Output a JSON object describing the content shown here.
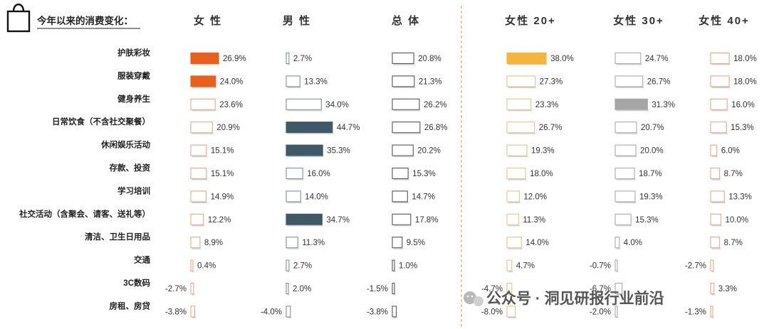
{
  "chart_data": {
    "type": "bar",
    "title": "今年以来的消费变化：",
    "categories": [
      "护肤彩妆",
      "服装穿戴",
      "健身养生",
      "日常饮食（不含社交聚餐）",
      "休闲娱乐活动",
      "存款、投资",
      "学习培训",
      "社交活动（含聚会、请客、送礼等）",
      "清洁、卫生日用品",
      "交通",
      "3C数码",
      "房租、房贷"
    ],
    "series": [
      {
        "name": "女 性",
        "values": [
          26.9,
          24.0,
          23.6,
          20.9,
          15.1,
          15.1,
          14.9,
          12.2,
          8.9,
          0.4,
          -2.7,
          -3.8
        ],
        "labels": [
          "26.9%",
          "24.0%",
          "23.6%",
          "20.9%",
          "15.1%",
          "15.1%",
          "14.9%",
          "12.2%",
          "8.9%",
          "0.4%",
          "-2.7%",
          "-3.8%"
        ],
        "highlight": [
          0,
          1
        ],
        "color": "#e8601c",
        "border": "#e8a888"
      },
      {
        "name": "男 性",
        "values": [
          2.7,
          13.3,
          34.0,
          44.7,
          35.3,
          16.0,
          14.0,
          34.7,
          11.3,
          2.7,
          2.0,
          -4.0
        ],
        "labels": [
          "2.7%",
          "13.3%",
          "34.0%",
          "44.7%",
          "35.3%",
          "16.0%",
          "14.0%",
          "34.7%",
          "11.3%",
          "2.7%",
          "2.0%",
          "-4.0%"
        ],
        "highlight": [
          3,
          4,
          7
        ],
        "color": "#3f5968",
        "border": "#7f919c"
      },
      {
        "name": "总 体",
        "values": [
          20.8,
          21.3,
          26.2,
          26.8,
          20.2,
          15.3,
          14.7,
          17.8,
          9.5,
          1.0,
          -1.5,
          -3.8
        ],
        "labels": [
          "20.8%",
          "21.3%",
          "26.2%",
          "26.8%",
          "20.2%",
          "15.3%",
          "14.7%",
          "17.8%",
          "9.5%",
          "1.0%",
          "-1.5%",
          "-3.8%"
        ],
        "highlight": [],
        "color": "#444444",
        "border": "#555555"
      },
      {
        "name": "女性 20+",
        "values": [
          38.0,
          27.3,
          23.3,
          26.7,
          19.3,
          18.0,
          12.0,
          11.3,
          14.0,
          4.7,
          -4.7,
          -8.0
        ],
        "labels": [
          "38.0%",
          "27.3%",
          "23.3%",
          "26.7%",
          "19.3%",
          "18.0%",
          "12.0%",
          "11.3%",
          "14.0%",
          "4.7%",
          "-4.7%",
          "-8.0%"
        ],
        "highlight": [
          0
        ],
        "color": "#f5b53a",
        "border": "#e8c48a"
      },
      {
        "name": "女性 30+",
        "values": [
          24.7,
          26.7,
          31.3,
          20.7,
          20.0,
          18.7,
          19.3,
          15.3,
          4.0,
          -0.7,
          -6.7,
          -2.0
        ],
        "labels": [
          "24.7%",
          "26.7%",
          "31.3%",
          "20.7%",
          "20.0%",
          "18.7%",
          "19.3%",
          "15.3%",
          "4.0%",
          "-0.7%",
          "-6.7%",
          "-2.0%"
        ],
        "highlight": [
          2
        ],
        "color": "#a6a6a6",
        "border": "#aaaaaa"
      },
      {
        "name": "女性 40+",
        "values": [
          18.0,
          18.0,
          16.0,
          15.3,
          6.0,
          8.7,
          13.3,
          10.0,
          8.7,
          -2.7,
          3.3,
          -1.3
        ],
        "labels": [
          "18.0%",
          "18.0%",
          "16.0%",
          "15.3%",
          "6.0%",
          "8.7%",
          "13.3%",
          "10.0%",
          "8.7%",
          "-2.7%",
          "3.3%",
          "-1.3%"
        ],
        "highlight": [],
        "color": "#e8601c",
        "border": "#e8a888"
      }
    ],
    "xlabel": "",
    "ylabel": "",
    "grid": false,
    "legend": "none"
  },
  "watermark": "公众号 · 洞见研报行业前沿",
  "icons": {
    "title": "shopping-bag-icon",
    "watermark": "wechat-icon"
  }
}
